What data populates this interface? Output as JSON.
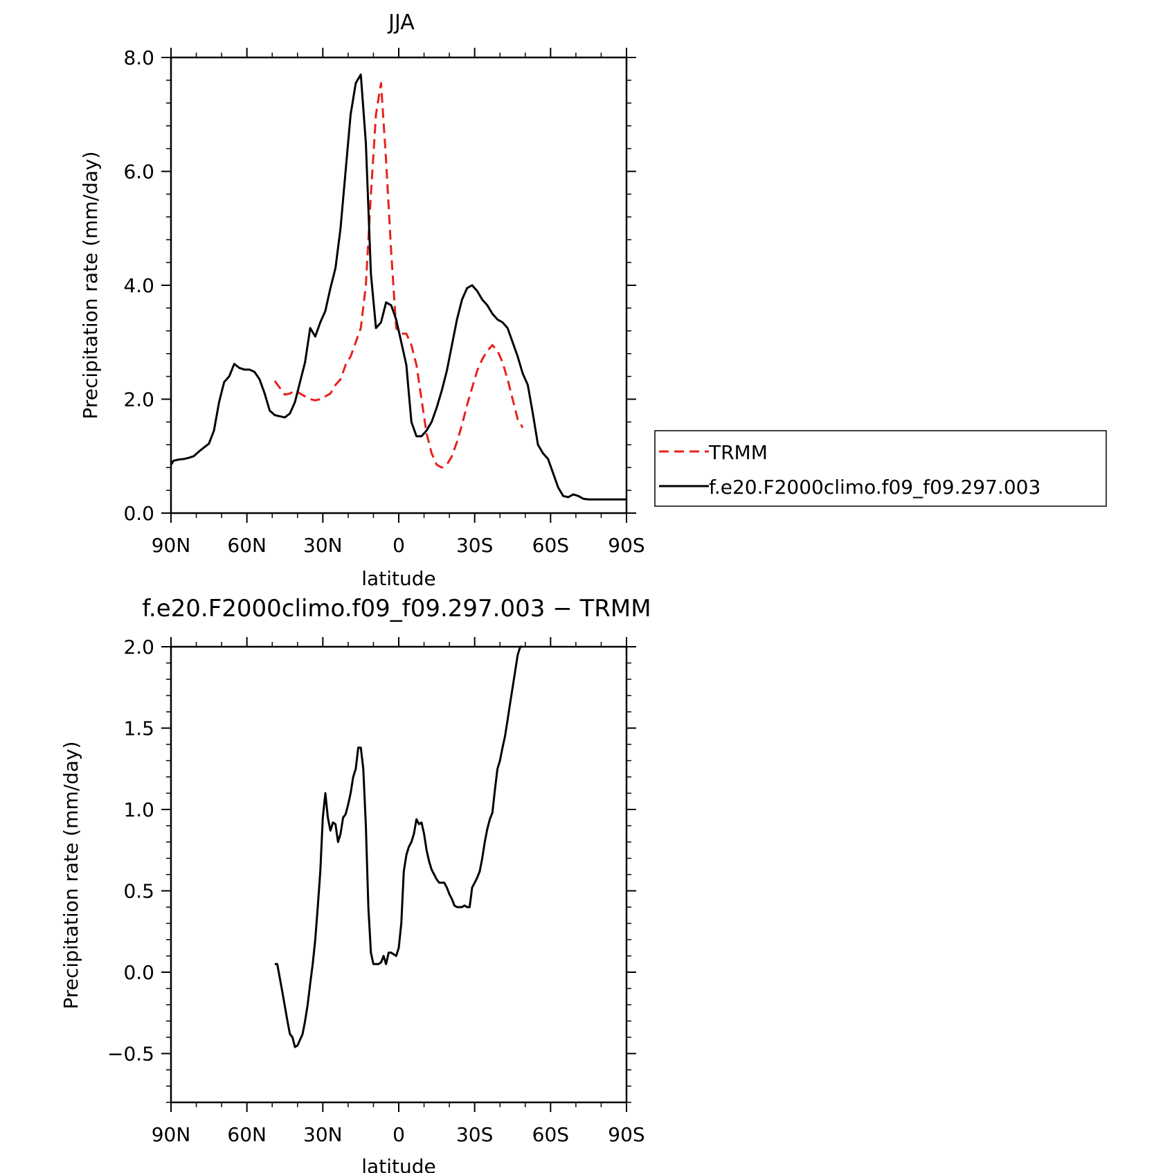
{
  "chart_data": [
    {
      "type": "line",
      "title": "JJA",
      "xlabel": "latitude",
      "ylabel": "Precipitation rate (mm/day)",
      "xlim": [
        90,
        -90
      ],
      "ylim": [
        0,
        8
      ],
      "x_tick_values": [
        90,
        60,
        30,
        0,
        -30,
        -60,
        -90
      ],
      "x_tick_labels": [
        "90N",
        "60N",
        "30N",
        "0",
        "30S",
        "60S",
        "90S"
      ],
      "y_tick_values": [
        0,
        2,
        4,
        6,
        8
      ],
      "y_tick_labels": [
        "0.0",
        "2.0",
        "4.0",
        "6.0",
        "8.0"
      ],
      "legend_position": "right",
      "series": [
        {
          "name": "TRMM",
          "color": "#e8201c",
          "dash": "dashed",
          "x": [
            49,
            47,
            45,
            43,
            41,
            39,
            37,
            35,
            33,
            31,
            29,
            27,
            25,
            23,
            21,
            19,
            17,
            15,
            13,
            11,
            9,
            7,
            5,
            3,
            1,
            -1,
            -3,
            -5,
            -7,
            -9,
            -11,
            -13,
            -15,
            -17,
            -19,
            -21,
            -23,
            -25,
            -27,
            -29,
            -31,
            -33,
            -35,
            -37,
            -39,
            -41,
            -43,
            -45,
            -47,
            -49
          ],
          "y": [
            2.32,
            2.2,
            2.08,
            2.1,
            2.15,
            2.1,
            2.05,
            2.0,
            1.98,
            2.0,
            2.05,
            2.1,
            2.25,
            2.35,
            2.6,
            2.75,
            3.0,
            3.25,
            4.0,
            5.6,
            7.0,
            7.55,
            6.2,
            4.6,
            3.25,
            3.15,
            3.15,
            2.95,
            2.6,
            2.0,
            1.4,
            1.05,
            0.85,
            0.8,
            0.85,
            1.0,
            1.25,
            1.55,
            1.9,
            2.2,
            2.5,
            2.7,
            2.85,
            2.95,
            2.85,
            2.65,
            2.35,
            2.0,
            1.65,
            1.5
          ]
        },
        {
          "name": "f.e20.F2000climo.f09_f09.297.003",
          "color": "#000000",
          "dash": "solid",
          "x": [
            90,
            89,
            87,
            85,
            83,
            81,
            79,
            77,
            75,
            73,
            71,
            69,
            67,
            65,
            63,
            61,
            59,
            57,
            55,
            53,
            51,
            49,
            47,
            45,
            43,
            41,
            39,
            37,
            35,
            33,
            31,
            29,
            28,
            27,
            25,
            23,
            21,
            19,
            17,
            15,
            13,
            11,
            9,
            7,
            5,
            3,
            1,
            -1,
            -3,
            -4,
            -5,
            -7,
            -9,
            -11,
            -13,
            -15,
            -17,
            -19,
            -21,
            -23,
            -25,
            -27,
            -29,
            -31,
            -33,
            -35,
            -37,
            -39,
            -41,
            -43,
            -45,
            -47,
            -49,
            -51,
            -53,
            -55,
            -57,
            -59,
            -61,
            -63,
            -65,
            -67,
            -69,
            -71,
            -73,
            -75,
            -77,
            -79,
            -81,
            -83,
            -85,
            -87,
            -89,
            -90
          ],
          "y": [
            0.85,
            0.92,
            0.94,
            0.95,
            0.97,
            1.0,
            1.08,
            1.15,
            1.22,
            1.45,
            1.95,
            2.3,
            2.4,
            2.62,
            2.55,
            2.52,
            2.52,
            2.48,
            2.35,
            2.1,
            1.8,
            1.72,
            1.7,
            1.68,
            1.75,
            1.95,
            2.3,
            2.65,
            3.25,
            3.1,
            3.35,
            3.55,
            3.75,
            3.95,
            4.3,
            5.0,
            6.0,
            7.0,
            7.55,
            7.7,
            6.5,
            4.2,
            3.25,
            3.35,
            3.7,
            3.65,
            3.4,
            3.0,
            2.6,
            2.1,
            1.6,
            1.35,
            1.35,
            1.45,
            1.6,
            1.85,
            2.15,
            2.5,
            2.95,
            3.4,
            3.75,
            3.95,
            4.0,
            3.9,
            3.75,
            3.65,
            3.5,
            3.4,
            3.35,
            3.25,
            3.0,
            2.75,
            2.45,
            2.25,
            1.75,
            1.2,
            1.05,
            0.95,
            0.7,
            0.45,
            0.3,
            0.28,
            0.33,
            0.3,
            0.25,
            0.24,
            0.24,
            0.24,
            0.24,
            0.24,
            0.24,
            0.24,
            0.24,
            0.24
          ]
        }
      ]
    },
    {
      "type": "line",
      "title": "f.e20.F2000climo.f09_f09.297.003 − TRMM",
      "xlabel": "latitude",
      "ylabel": "Precipitation rate (mm/day)",
      "xlim": [
        90,
        -90
      ],
      "ylim": [
        -0.8,
        2.0
      ],
      "x_tick_values": [
        90,
        60,
        30,
        0,
        -30,
        -60,
        -90
      ],
      "x_tick_labels": [
        "90N",
        "60N",
        "30N",
        "0",
        "30S",
        "60S",
        "90S"
      ],
      "y_tick_values": [
        -0.5,
        0.0,
        0.5,
        1.0,
        1.5,
        2.0
      ],
      "y_tick_labels": [
        "−0.5",
        "0.0",
        "0.5",
        "1.0",
        "1.5",
        "2.0"
      ],
      "series": [
        {
          "color": "#000000",
          "dash": "solid",
          "x": [
            49,
            48,
            46,
            44,
            43,
            42,
            41,
            40,
            38,
            37,
            36,
            35,
            34,
            33,
            32,
            31,
            30,
            29,
            28,
            27,
            26,
            25,
            24,
            23,
            22,
            21,
            20,
            19,
            18,
            17,
            16,
            15,
            14,
            13,
            12,
            11,
            10,
            9,
            8,
            7,
            6,
            5,
            4,
            3,
            2,
            1,
            0,
            -1,
            -2,
            -3,
            -4,
            -5,
            -6,
            -7,
            -8,
            -9,
            -10,
            -11,
            -12,
            -13,
            -14,
            -15,
            -16,
            -17,
            -18,
            -19,
            -20,
            -21,
            -22,
            -23,
            -24,
            -25,
            -26,
            -27,
            -28,
            -29,
            -30,
            -31,
            -32,
            -33,
            -34,
            -35,
            -36,
            -37,
            -38,
            -39,
            -40,
            -41,
            -42,
            -43,
            -44,
            -45,
            -46,
            -47,
            -48,
            -49
          ],
          "y": [
            0.05,
            0.05,
            -0.12,
            -0.3,
            -0.38,
            -0.4,
            -0.46,
            -0.45,
            -0.38,
            -0.3,
            -0.2,
            -0.07,
            0.05,
            0.2,
            0.4,
            0.62,
            0.95,
            1.1,
            0.95,
            0.87,
            0.92,
            0.91,
            0.8,
            0.85,
            0.95,
            0.97,
            1.03,
            1.1,
            1.2,
            1.25,
            1.38,
            1.38,
            1.25,
            0.9,
            0.4,
            0.12,
            0.05,
            0.05,
            0.05,
            0.06,
            0.1,
            0.05,
            0.12,
            0.12,
            0.11,
            0.1,
            0.15,
            0.3,
            0.62,
            0.72,
            0.77,
            0.8,
            0.85,
            0.94,
            0.91,
            0.92,
            0.85,
            0.75,
            0.68,
            0.63,
            0.6,
            0.57,
            0.55,
            0.55,
            0.55,
            0.52,
            0.48,
            0.45,
            0.41,
            0.4,
            0.4,
            0.4,
            0.41,
            0.4,
            0.4,
            0.52,
            0.55,
            0.58,
            0.62,
            0.7,
            0.8,
            0.88,
            0.94,
            0.98,
            1.12,
            1.25,
            1.3,
            1.38,
            1.45,
            1.55,
            1.65,
            1.75,
            1.85,
            1.95,
            2.0,
            2.0
          ]
        }
      ]
    }
  ]
}
